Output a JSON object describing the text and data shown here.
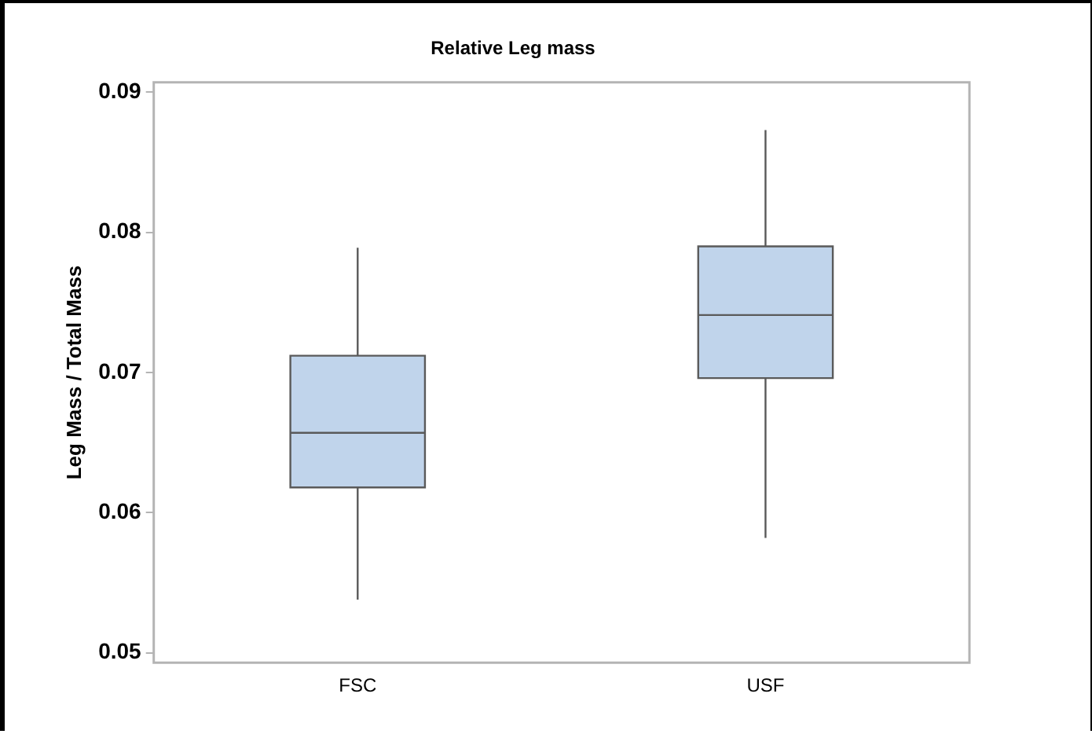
{
  "chart_data": {
    "type": "box",
    "title": "Relative Leg mass",
    "ylabel": "Leg Mass / Total Mass",
    "categories": [
      "FSC",
      "USF"
    ],
    "color": "#c0d4eb",
    "boxes": [
      {
        "low": 0.0538,
        "q1": 0.0618,
        "median": 0.0657,
        "q3": 0.0712,
        "high": 0.0789
      },
      {
        "low": 0.0582,
        "q1": 0.0696,
        "median": 0.0741,
        "q3": 0.079,
        "high": 0.0873
      }
    ],
    "ylim": [
      0.0493,
      0.0907
    ],
    "yticks": [
      {
        "value": 0.05,
        "label": "0.05"
      },
      {
        "value": 0.06,
        "label": "0.06"
      },
      {
        "value": 0.07,
        "label": "0.07"
      },
      {
        "value": 0.08,
        "label": "0.08"
      },
      {
        "value": 0.09,
        "label": "0.09"
      }
    ],
    "grid": false,
    "legend": false
  }
}
